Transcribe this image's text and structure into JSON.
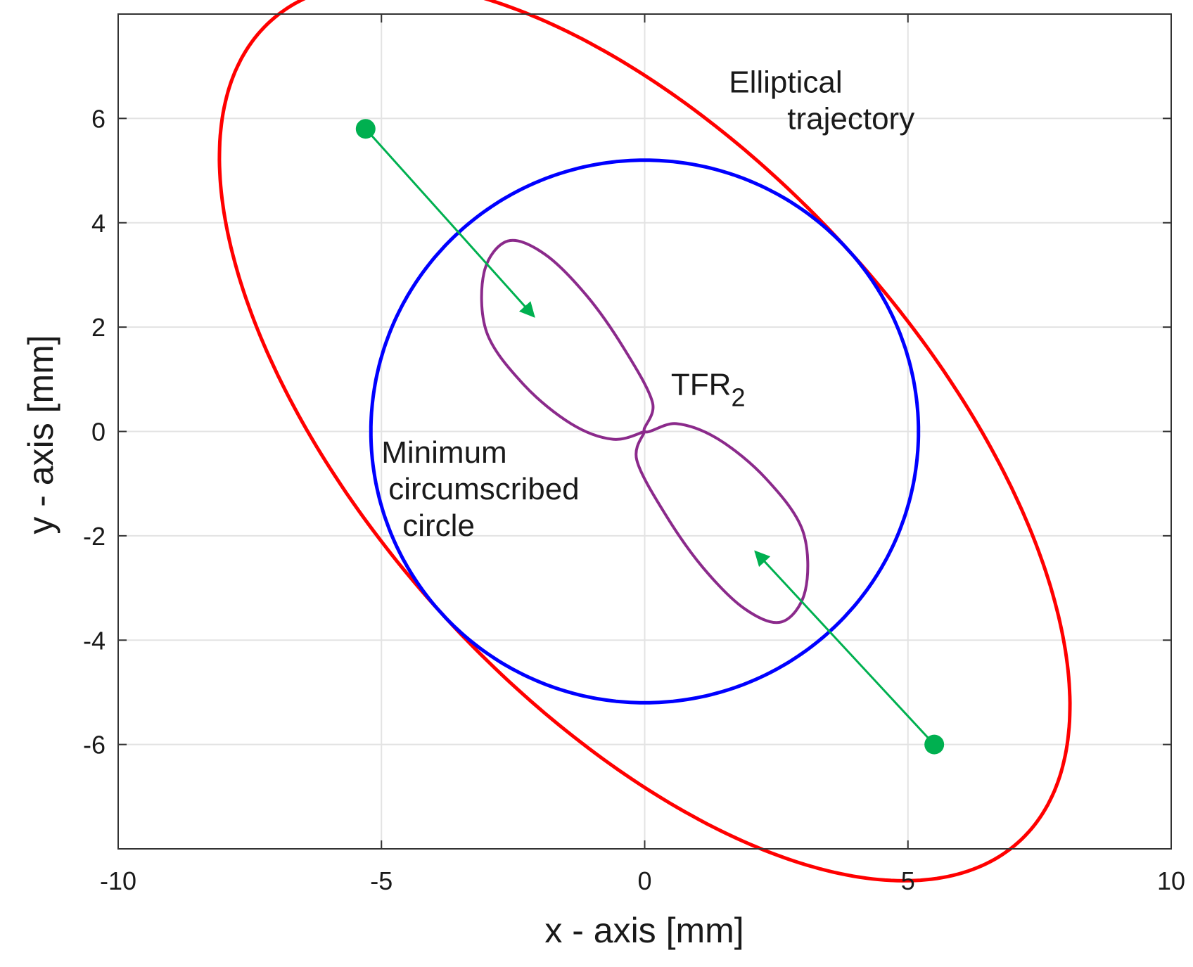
{
  "chart_data": {
    "type": "line",
    "title": "",
    "xlabel": "x - axis [mm]",
    "ylabel": "y - axis [mm]",
    "xlim": [
      -10,
      10
    ],
    "ylim": [
      -8,
      8
    ],
    "xticks": [
      -10,
      -5,
      0,
      5,
      10
    ],
    "yticks": [
      -6,
      -4,
      -2,
      0,
      2,
      4,
      6
    ],
    "xtick_labels": [
      "-10",
      "-5",
      "0",
      "5",
      "10"
    ],
    "ytick_labels": [
      "-6",
      "-4",
      "-2",
      "0",
      "2",
      "4",
      "6"
    ],
    "grid": true,
    "series": [
      {
        "name": "Elliptical trajectory",
        "kind": "ellipse",
        "color": "#ff0000",
        "center": [
          0,
          0
        ],
        "semi_major": 10.6,
        "semi_minor": 5.2,
        "rotation_deg": -48
      },
      {
        "name": "Minimum circumscribed circle",
        "kind": "circle",
        "color": "#0000ff",
        "center": [
          0,
          0
        ],
        "radius": 5.2
      },
      {
        "name": "TFR2",
        "kind": "two-lobe curve",
        "color": "#8b2a8b",
        "points": [
          [
            0,
            0
          ],
          [
            -0.6,
            -0.15
          ],
          [
            -1.4,
            0.15
          ],
          [
            -2.3,
            0.9
          ],
          [
            -3.0,
            1.9
          ],
          [
            -3.05,
            3.05
          ],
          [
            -2.6,
            3.65
          ],
          [
            -1.9,
            3.4
          ],
          [
            -1.1,
            2.6
          ],
          [
            -0.4,
            1.6
          ],
          [
            0.15,
            0.55
          ],
          [
            0,
            0
          ],
          [
            0.6,
            0.15
          ],
          [
            1.4,
            -0.15
          ],
          [
            2.3,
            -0.9
          ],
          [
            3.0,
            -1.9
          ],
          [
            3.05,
            -3.05
          ],
          [
            2.6,
            -3.65
          ],
          [
            1.9,
            -3.4
          ],
          [
            1.1,
            -2.6
          ],
          [
            0.4,
            -1.6
          ],
          [
            -0.15,
            -0.55
          ],
          [
            0,
            0
          ]
        ]
      }
    ],
    "markers": [
      {
        "name": "start point upper",
        "color": "#00b050",
        "x": -5.3,
        "y": 5.8,
        "arrow_to": [
          -2.1,
          2.2
        ]
      },
      {
        "name": "start point lower",
        "color": "#00b050",
        "x": 5.5,
        "y": -6.0,
        "arrow_to": [
          2.1,
          -2.3
        ]
      }
    ],
    "annotations": [
      {
        "lines": [
          "Elliptical",
          "trajectory"
        ],
        "x": 1.6,
        "y": 6.5
      },
      {
        "lines": [
          "Minimum",
          "circumscribed",
          "circle"
        ],
        "x": -5.0,
        "y": -0.6
      },
      {
        "text": "TFR",
        "subscript": "2",
        "x": 0.5,
        "y": 0.7
      }
    ]
  }
}
